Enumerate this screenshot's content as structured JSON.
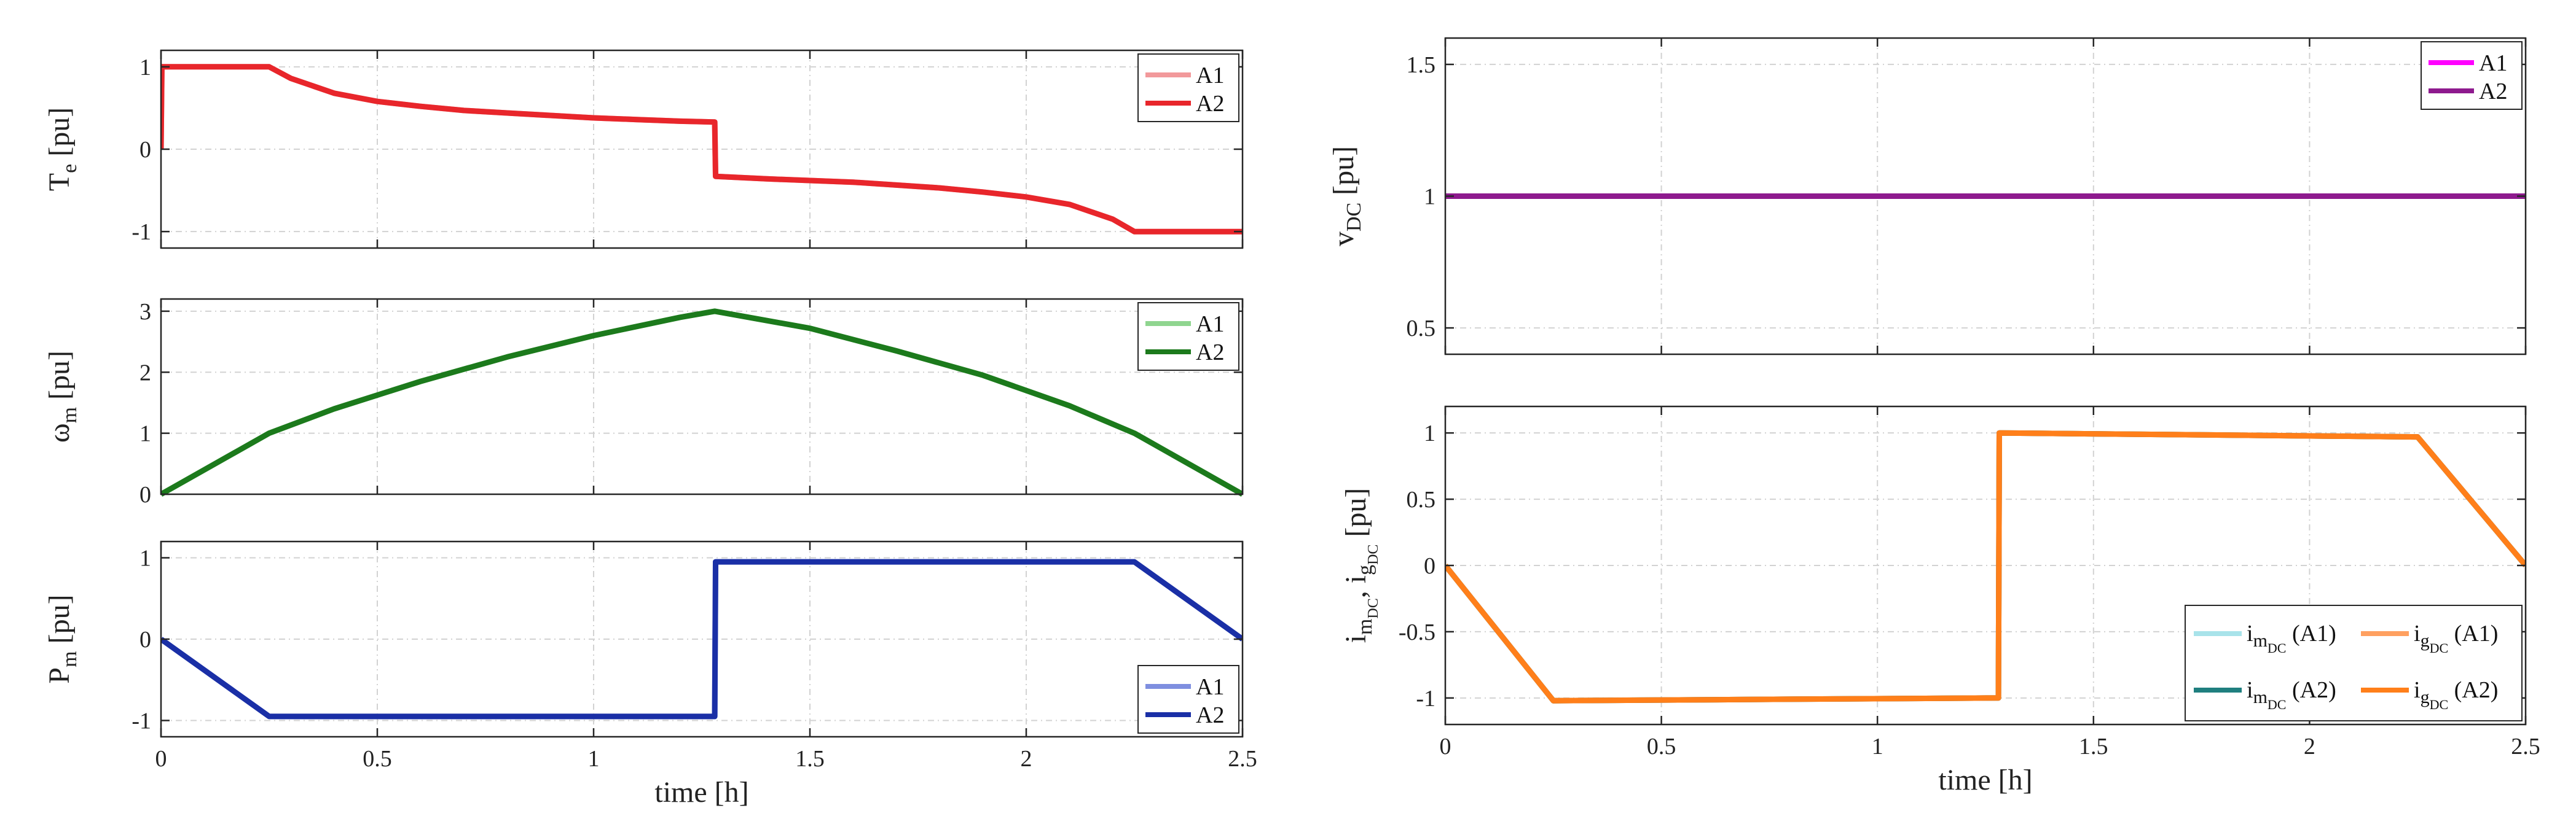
{
  "chart_data": [
    {
      "id": "te",
      "type": "line",
      "ylabel": {
        "main": "T",
        "sub": "e",
        "unit": "[pu]"
      },
      "xlabel": "",
      "xlim": [
        0,
        2.5
      ],
      "ylim": [
        -1.2,
        1.2
      ],
      "xticks": [
        0,
        0.5,
        1,
        1.5,
        2,
        2.5
      ],
      "xticklabels": [
        "",
        "",
        "",
        "",
        "",
        ""
      ],
      "yticks": [
        -1,
        0,
        1
      ],
      "yticklabels": [
        "-1",
        "0",
        "1"
      ],
      "legend_position": "top-right",
      "legend": [
        "A1",
        "A2"
      ],
      "series": [
        {
          "name": "A1",
          "color": "#f2999b",
          "x": [
            0,
            0.002,
            0.25,
            0.3,
            0.4,
            0.5,
            0.6,
            0.7,
            0.8,
            0.9,
            1.0,
            1.1,
            1.2,
            1.28,
            1.282,
            1.4,
            1.6,
            1.8,
            1.9,
            2.0,
            2.1,
            2.2,
            2.25,
            2.5
          ],
          "y": [
            0,
            1,
            1,
            0.86,
            0.68,
            0.58,
            0.52,
            0.47,
            0.44,
            0.41,
            0.38,
            0.36,
            0.34,
            0.33,
            -0.33,
            -0.36,
            -0.4,
            -0.47,
            -0.52,
            -0.58,
            -0.67,
            -0.85,
            -1,
            -1
          ]
        },
        {
          "name": "A2",
          "color": "#e8262b",
          "x": [
            0,
            0.002,
            0.25,
            0.3,
            0.4,
            0.5,
            0.6,
            0.7,
            0.8,
            0.9,
            1.0,
            1.1,
            1.2,
            1.28,
            1.282,
            1.4,
            1.6,
            1.8,
            1.9,
            2.0,
            2.1,
            2.2,
            2.25,
            2.5
          ],
          "y": [
            0,
            1,
            1,
            0.86,
            0.68,
            0.58,
            0.52,
            0.47,
            0.44,
            0.41,
            0.38,
            0.36,
            0.34,
            0.33,
            -0.33,
            -0.36,
            -0.4,
            -0.47,
            -0.52,
            -0.58,
            -0.67,
            -0.85,
            -1,
            -1
          ]
        }
      ]
    },
    {
      "id": "wm",
      "type": "line",
      "ylabel": {
        "main": "ω",
        "sub": "m",
        "unit": "[pu]"
      },
      "xlabel": "",
      "xlim": [
        0,
        2.5
      ],
      "ylim": [
        0,
        3.2
      ],
      "xticks": [
        0,
        0.5,
        1,
        1.5,
        2,
        2.5
      ],
      "xticklabels": [
        "",
        "",
        "",
        "",
        "",
        ""
      ],
      "yticks": [
        0,
        1,
        2,
        3
      ],
      "yticklabels": [
        "0",
        "1",
        "2",
        "3"
      ],
      "legend_position": "top-right",
      "legend": [
        "A1",
        "A2"
      ],
      "series": [
        {
          "name": "A1",
          "color": "#8fd58f",
          "x": [
            0,
            0.25,
            0.4,
            0.6,
            0.8,
            1.0,
            1.2,
            1.28,
            1.5,
            1.7,
            1.9,
            2.1,
            2.25,
            2.5
          ],
          "y": [
            0,
            1.0,
            1.4,
            1.85,
            2.25,
            2.6,
            2.9,
            3.0,
            2.72,
            2.35,
            1.95,
            1.45,
            1.0,
            0
          ]
        },
        {
          "name": "A2",
          "color": "#1c7a1c",
          "x": [
            0,
            0.25,
            0.4,
            0.6,
            0.8,
            1.0,
            1.2,
            1.28,
            1.5,
            1.7,
            1.9,
            2.1,
            2.25,
            2.5
          ],
          "y": [
            0,
            1.0,
            1.4,
            1.85,
            2.25,
            2.6,
            2.9,
            3.0,
            2.72,
            2.35,
            1.95,
            1.45,
            1.0,
            0
          ]
        }
      ]
    },
    {
      "id": "pm",
      "type": "line",
      "ylabel": {
        "main": "P",
        "sub": "m",
        "unit": "[pu]"
      },
      "xlabel": "time [h]",
      "xlim": [
        0,
        2.5
      ],
      "ylim": [
        -1.2,
        1.2
      ],
      "xticks": [
        0,
        0.5,
        1,
        1.5,
        2,
        2.5
      ],
      "xticklabels": [
        "0",
        "0.5",
        "1",
        "1.5",
        "2",
        "2.5"
      ],
      "yticks": [
        -1,
        0,
        1
      ],
      "yticklabels": [
        "-1",
        "0",
        "1"
      ],
      "legend_position": "bottom-right",
      "legend": [
        "A1",
        "A2"
      ],
      "series": [
        {
          "name": "A1",
          "color": "#7f8fe0",
          "x": [
            0,
            0.25,
            1.28,
            1.282,
            2.25,
            2.5
          ],
          "y": [
            0,
            -0.95,
            -0.95,
            0.95,
            0.95,
            0
          ]
        },
        {
          "name": "A2",
          "color": "#1a2fa6",
          "x": [
            0,
            0.25,
            1.28,
            1.282,
            2.25,
            2.5
          ],
          "y": [
            0,
            -0.95,
            -0.95,
            0.95,
            0.95,
            0
          ]
        }
      ]
    },
    {
      "id": "vdc",
      "type": "line",
      "ylabel": {
        "main": "v",
        "sub": "DC",
        "unit": "[pu]"
      },
      "xlabel": "",
      "xlim": [
        0,
        2.5
      ],
      "ylim": [
        0.4,
        1.6
      ],
      "xticks": [
        0,
        0.5,
        1,
        1.5,
        2,
        2.5
      ],
      "xticklabels": [
        "",
        "",
        "",
        "",
        "",
        ""
      ],
      "yticks": [
        0.5,
        1,
        1.5
      ],
      "yticklabels": [
        "0.5",
        "1",
        "1.5"
      ],
      "legend_position": "top-right",
      "legend": [
        "A1",
        "A2"
      ],
      "series": [
        {
          "name": "A1",
          "color": "#ff00ff",
          "x": [
            0,
            2.5
          ],
          "y": [
            1,
            1
          ]
        },
        {
          "name": "A2",
          "color": "#8e1a8e",
          "x": [
            0,
            2.5
          ],
          "y": [
            1,
            1
          ]
        }
      ]
    },
    {
      "id": "idc",
      "type": "line",
      "ylabel": {
        "a": "i",
        "a_sub": "m",
        "a_subsub": "DC",
        "sep": ", ",
        "b": "i",
        "b_sub": "g",
        "b_subsub": "DC",
        "unit": "[pu]"
      },
      "xlabel": "time [h]",
      "xlim": [
        0,
        2.5
      ],
      "ylim": [
        -1.2,
        1.2
      ],
      "xticks": [
        0,
        0.5,
        1,
        1.5,
        2,
        2.5
      ],
      "xticklabels": [
        "0",
        "0.5",
        "1",
        "1.5",
        "2",
        "2.5"
      ],
      "yticks": [
        -1,
        -0.5,
        0,
        0.5,
        1
      ],
      "yticklabels": [
        "-1",
        "-0.5",
        "0",
        "0.5",
        "1"
      ],
      "legend_position": "bottom-right",
      "legend": [
        {
          "main": "i",
          "sub": "m",
          "subsub": "DC",
          "suffix": " (A1)"
        },
        {
          "main": "i",
          "sub": "g",
          "subsub": "DC",
          "suffix": " (A1)"
        },
        {
          "main": "i",
          "sub": "m",
          "subsub": "DC",
          "suffix": " (A2)"
        },
        {
          "main": "i",
          "sub": "g",
          "subsub": "DC",
          "suffix": " (A2)"
        }
      ],
      "series": [
        {
          "name": "i_mDC (A1)",
          "color": "#a8e3ea",
          "x": [
            0,
            0.25,
            1.28,
            1.282,
            2.25,
            2.5
          ],
          "y": [
            0,
            -1.02,
            -1.0,
            1.0,
            0.97,
            0
          ]
        },
        {
          "name": "i_gDC (A1)",
          "color": "#ffa060",
          "x": [
            0,
            0.25,
            1.28,
            1.282,
            2.25,
            2.5
          ],
          "y": [
            0,
            -1.02,
            -1.0,
            1.0,
            0.97,
            0
          ]
        },
        {
          "name": "i_mDC (A2)",
          "color": "#1f7f7f",
          "x": [
            0,
            0.25,
            1.28,
            1.282,
            2.25,
            2.5
          ],
          "y": [
            0,
            -1.02,
            -1.0,
            1.0,
            0.97,
            0
          ]
        },
        {
          "name": "i_gDC (A2)",
          "color": "#ff7f1a",
          "x": [
            0,
            0.25,
            1.28,
            1.282,
            2.25,
            2.5
          ],
          "y": [
            0,
            -1.02,
            -1.0,
            1.0,
            0.97,
            0
          ]
        }
      ]
    }
  ]
}
